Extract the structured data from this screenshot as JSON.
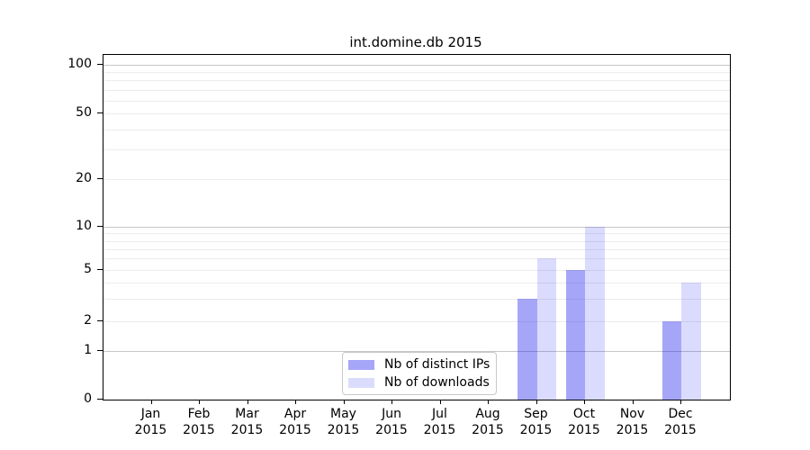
{
  "title": "int.domine.db 2015",
  "legend": {
    "items": [
      {
        "label": "Nb of distinct IPs"
      },
      {
        "label": "Nb of downloads"
      }
    ]
  },
  "colors": {
    "bar_distinct_ips": "rgba(0,0,238,0.35)",
    "bar_downloads": "rgba(0,0,238,0.14)",
    "grid_major": "#c7c7c7",
    "grid_minor": "#ececec",
    "axis": "#000000",
    "legend_border": "#c8c8c8"
  },
  "chart_data": {
    "type": "bar",
    "title": "int.domine.db 2015",
    "categories": [
      "Jan",
      "Feb",
      "Mar",
      "Apr",
      "May",
      "Jun",
      "Jul",
      "Aug",
      "Sep",
      "Oct",
      "Nov",
      "Dec"
    ],
    "x_year_label": "2015",
    "series": [
      {
        "name": "Nb of distinct IPs",
        "color": "rgba(0,0,238,0.35)",
        "values": [
          0,
          0,
          0,
          0,
          0,
          0,
          0,
          0,
          3,
          5,
          0,
          2
        ]
      },
      {
        "name": "Nb of downloads",
        "color": "rgba(0,0,238,0.14)",
        "values": [
          0,
          0,
          0,
          0,
          0,
          0,
          0,
          0,
          6,
          10,
          0,
          4
        ]
      }
    ],
    "y_ticks": [
      0,
      1,
      2,
      5,
      10,
      20,
      50,
      100
    ],
    "y_minor_gridlines": [
      2,
      3,
      4,
      5,
      6,
      7,
      8,
      9,
      20,
      30,
      40,
      50,
      60,
      70,
      80,
      90
    ],
    "y_major_gridlines": [
      1,
      10,
      100
    ],
    "y_scale": "symlog",
    "ylim": [
      0,
      115
    ],
    "xlabel": "",
    "ylabel": "",
    "grid": "horizontal",
    "legend_position": "lower-center-inside"
  }
}
